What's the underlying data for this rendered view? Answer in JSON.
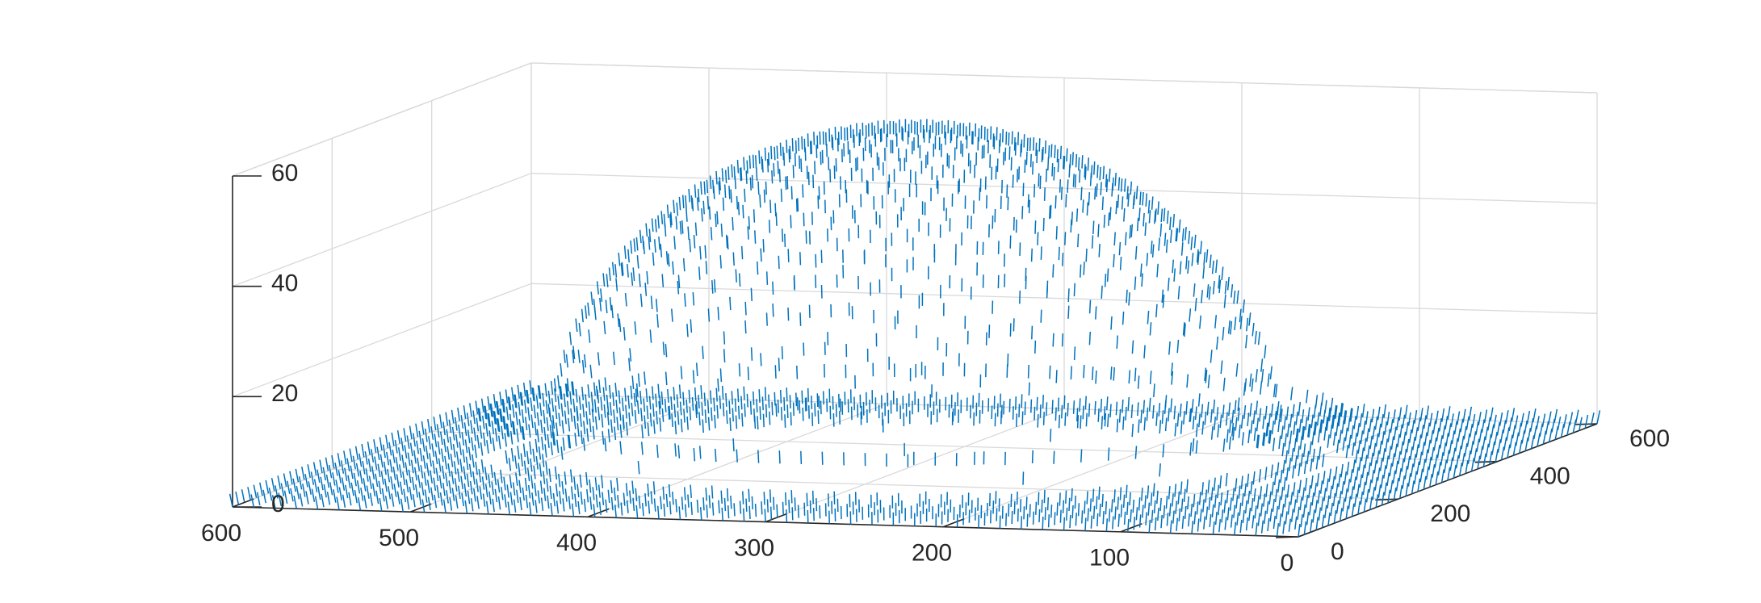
{
  "chart_data": {
    "type": "quiver3",
    "title": "",
    "xlabel": "",
    "ylabel": "",
    "zlabel": "",
    "grid": true,
    "box": true,
    "series_color": "#0072bd",
    "xlim": [
      0,
      600
    ],
    "ylim": [
      0,
      600
    ],
    "zlim": [
      0,
      60
    ],
    "x_ticks": [
      "0",
      "100",
      "200",
      "300",
      "400",
      "500",
      "600"
    ],
    "y_ticks": [
      "0",
      "200",
      "400",
      "600"
    ],
    "z_ticks": [
      "0",
      "20",
      "40",
      "60"
    ],
    "surface": {
      "description_of_shape": "dome",
      "center": [
        300,
        300
      ],
      "dome_radius": 200,
      "peak_z": 60,
      "base_z": 0,
      "ring_radius": 230,
      "ring_z": 8
    }
  }
}
